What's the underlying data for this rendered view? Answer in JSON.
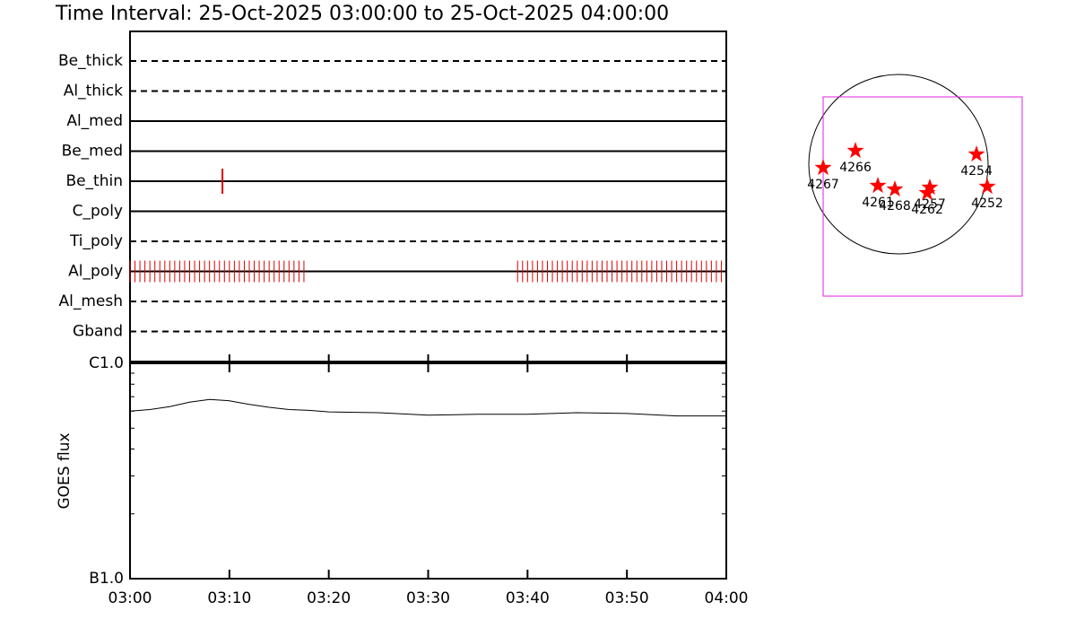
{
  "chart_data": [
    {
      "type": "timeline",
      "title": "Time Interval: 25-Oct-2025 03:00:00 to 25-Oct-2025 04:00:00",
      "xlim": [
        "03:00",
        "04:00"
      ],
      "categories": [
        "Be_thick",
        "Al_thick",
        "Al_med",
        "Be_med",
        "Be_thin",
        "C_poly",
        "Ti_poly",
        "Al_poly",
        "Al_mesh",
        "Gband"
      ],
      "line_styles": [
        "dashed",
        "dashed",
        "solid",
        "solid",
        "solid",
        "solid",
        "dashed",
        "solid",
        "dashed",
        "dashed"
      ],
      "event_color": "#e00000",
      "events": [
        [],
        [],
        [],
        [],
        [
          "03:09:18"
        ],
        [],
        [],
        [
          "03:00:00",
          "03:00:30",
          "03:01:00",
          "03:01:30",
          "03:02:00",
          "03:02:30",
          "03:03:00",
          "03:03:30",
          "03:04:00",
          "03:04:30",
          "03:05:00",
          "03:05:30",
          "03:06:00",
          "03:06:30",
          "03:07:00",
          "03:07:30",
          "03:08:00",
          "03:08:30",
          "03:09:00",
          "03:09:30",
          "03:10:00",
          "03:10:30",
          "03:11:00",
          "03:11:30",
          "03:12:00",
          "03:12:30",
          "03:13:00",
          "03:13:30",
          "03:14:00",
          "03:14:30",
          "03:15:00",
          "03:15:30",
          "03:16:00",
          "03:16:30",
          "03:17:00",
          "03:17:30",
          "03:39:00",
          "03:39:30",
          "03:40:00",
          "03:40:30",
          "03:41:00",
          "03:41:30",
          "03:42:00",
          "03:42:30",
          "03:43:00",
          "03:43:30",
          "03:44:00",
          "03:44:30",
          "03:45:00",
          "03:45:30",
          "03:46:00",
          "03:46:30",
          "03:47:00",
          "03:47:30",
          "03:48:00",
          "03:48:30",
          "03:49:00",
          "03:49:30",
          "03:50:00",
          "03:50:30",
          "03:51:00",
          "03:51:30",
          "03:52:00",
          "03:52:30",
          "03:53:00",
          "03:53:30",
          "03:54:00",
          "03:54:30",
          "03:55:00",
          "03:55:30",
          "03:56:00",
          "03:56:30",
          "03:57:00",
          "03:57:30",
          "03:58:00",
          "03:58:30",
          "03:59:00",
          "03:59:30"
        ],
        [],
        []
      ]
    },
    {
      "type": "line",
      "ylabel": "GOES flux",
      "log": true,
      "color": "#000000",
      "xlim": [
        "03:00",
        "04:00"
      ],
      "xticks": [
        "03:00",
        "03:10",
        "03:20",
        "03:30",
        "03:40",
        "03:50",
        "04:00"
      ],
      "ylim": [
        1e-07,
        1e-06
      ],
      "yticks": [
        {
          "value": 1e-06,
          "label": "C1.0"
        },
        {
          "value": 1e-07,
          "label": "B1.0"
        }
      ],
      "yminor": [
        2e-07,
        3e-07,
        4e-07,
        5e-07,
        6e-07,
        7e-07,
        8e-07,
        9e-07
      ],
      "x": [
        "03:00",
        "03:02",
        "03:04",
        "03:06",
        "03:08",
        "03:10",
        "03:12",
        "03:14",
        "03:16",
        "03:18",
        "03:20",
        "03:25",
        "03:30",
        "03:35",
        "03:40",
        "03:45",
        "03:50",
        "03:55",
        "04:00"
      ],
      "values": [
        6e-07,
        6.1e-07,
        6.3e-07,
        6.6e-07,
        6.8e-07,
        6.7e-07,
        6.45e-07,
        6.25e-07,
        6.1e-07,
        6.05e-07,
        5.95e-07,
        5.9e-07,
        5.75e-07,
        5.8e-07,
        5.8e-07,
        5.9e-07,
        5.85e-07,
        5.7e-07,
        5.7e-07
      ]
    },
    {
      "type": "map",
      "sun_radius": 980,
      "fov": {
        "x": [
          -823,
          1352
        ],
        "y": [
          -1441,
          735
        ]
      },
      "fov_color": "#e020e0",
      "color": "#ff0000",
      "labels": [
        "4267",
        "4266",
        "4261",
        "4268",
        "4257",
        "4262",
        "4254",
        "4252"
      ],
      "x": [
        -823,
        -470,
        -225,
        -39,
        343,
        314,
        853,
        970
      ],
      "y": [
        -39,
        147,
        -235,
        -274,
        -255,
        -314,
        108,
        -245
      ]
    }
  ]
}
